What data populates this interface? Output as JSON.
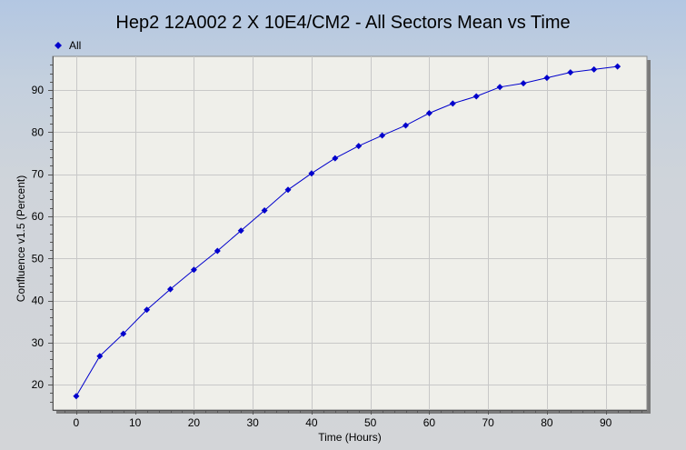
{
  "chart_data": {
    "type": "line",
    "title": "Hep2 12A002 2 X 10E4/CM2 - All Sectors Mean vs Time",
    "xlabel": "Time (Hours)",
    "ylabel": "Confluence v1.5 (Percent)",
    "xlim": [
      -4,
      97
    ],
    "ylim": [
      14,
      98
    ],
    "xticks": [
      0,
      10,
      20,
      30,
      40,
      50,
      60,
      70,
      80,
      90
    ],
    "yticks": [
      20,
      30,
      40,
      50,
      60,
      70,
      80,
      90
    ],
    "grid": true,
    "legend_position": "top-left",
    "series": [
      {
        "name": "All",
        "color": "#0000cc",
        "marker": "diamond",
        "x": [
          0,
          4,
          8,
          12,
          16,
          20,
          24,
          28,
          32,
          36,
          40,
          44,
          48,
          52,
          56,
          60,
          64,
          68,
          72,
          76,
          80,
          84,
          88,
          92
        ],
        "y": [
          17.3,
          26.8,
          32.1,
          37.8,
          42.7,
          47.3,
          51.8,
          56.6,
          61.4,
          66.3,
          70.2,
          73.8,
          76.7,
          79.2,
          81.6,
          84.5,
          86.8,
          88.5,
          90.7,
          91.6,
          92.9,
          94.2,
          94.9,
          95.6
        ]
      }
    ]
  }
}
